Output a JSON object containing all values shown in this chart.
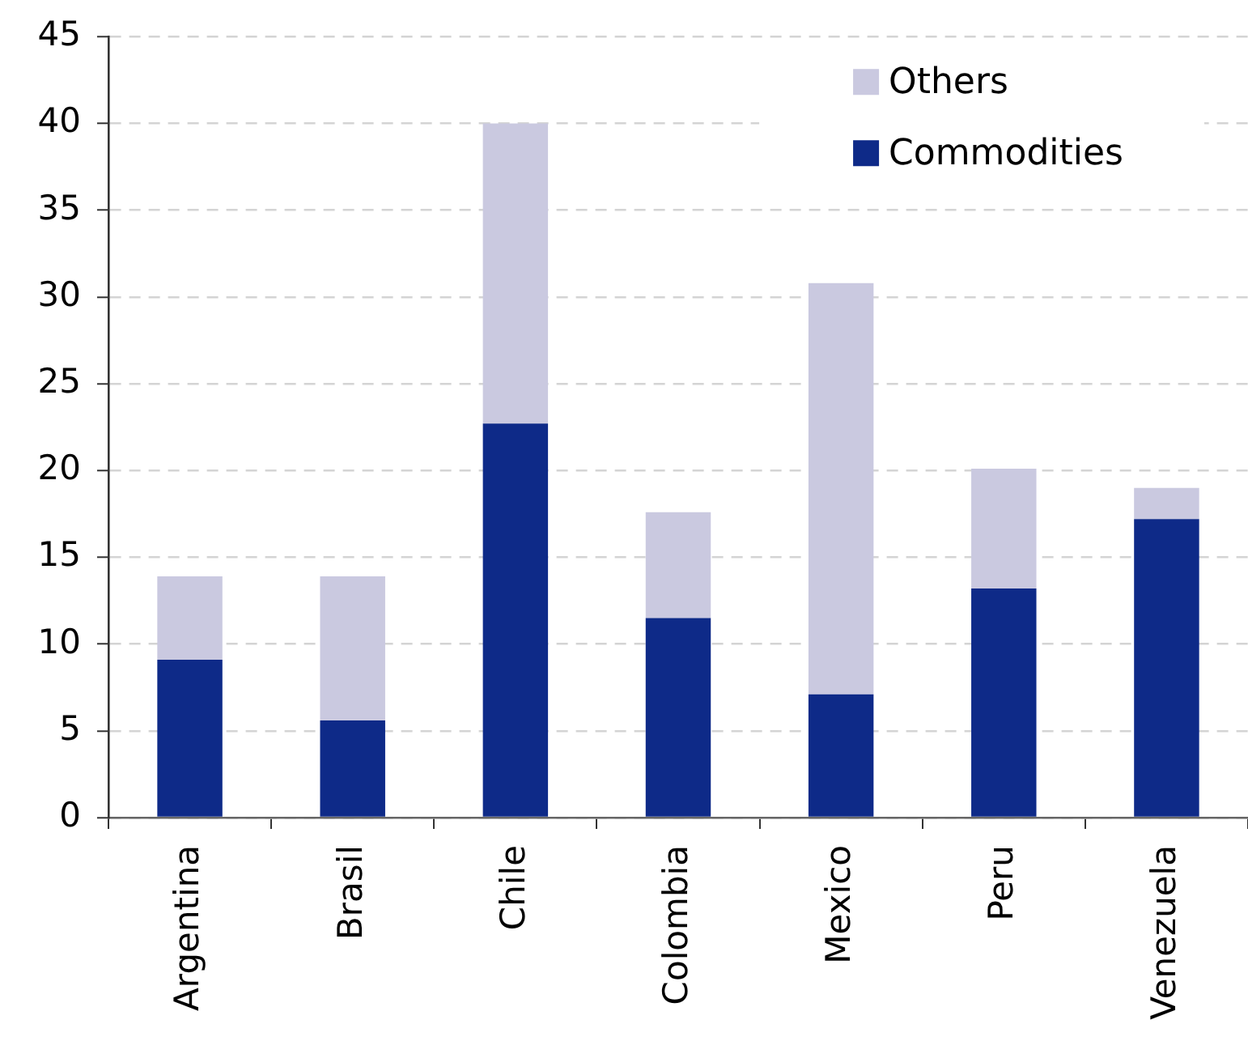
{
  "chart_data": {
    "type": "bar",
    "categories": [
      "Argentina",
      "Brasil",
      "Chile",
      "Colombia",
      "Mexico",
      "Peru",
      "Venezuela"
    ],
    "series": [
      {
        "name": "Commodities",
        "color": "#0e2a88",
        "values": [
          9.1,
          5.6,
          22.7,
          11.5,
          7.1,
          13.2,
          17.2
        ]
      },
      {
        "name": "Others",
        "color": "#cac9e0",
        "values": [
          4.8,
          8.3,
          17.3,
          6.1,
          23.7,
          6.9,
          1.8
        ]
      }
    ],
    "stacked": true,
    "ylim": [
      0,
      45
    ],
    "yticks": [
      0,
      5,
      10,
      15,
      20,
      25,
      30,
      35,
      40,
      45
    ],
    "grid": "y",
    "legend": "top right"
  }
}
